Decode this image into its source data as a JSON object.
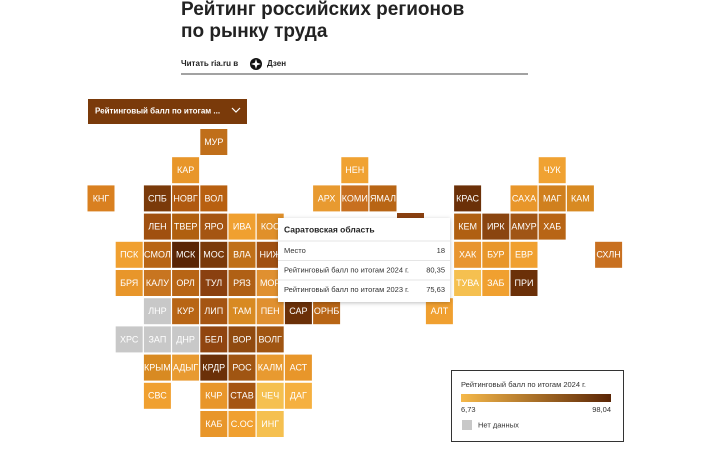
{
  "header": {
    "title": "Рейтинг российских регионов по рынку труда",
    "read_prefix": "Читать ria.ru в",
    "read_source": "Дзен"
  },
  "dropdown": {
    "label": "Рейтинговый балл по итогам ..."
  },
  "tiles": [
    {
      "label": "МУР",
      "color": "#c06f1a"
    },
    {
      "label": "КАР",
      "color": "#e8962a"
    },
    {
      "label": "НЕН",
      "color": "#f0a232"
    },
    {
      "label": "ЧУК",
      "color": "#f0a232"
    },
    {
      "label": "КНГ",
      "color": "#d98020"
    },
    {
      "label": "СПБ",
      "color": "#7a3a0a"
    },
    {
      "label": "НОВГ",
      "color": "#b05a10"
    },
    {
      "label": "ВОЛ",
      "color": "#b86010"
    },
    {
      "label": "АРХ",
      "color": "#e89a30"
    },
    {
      "label": "КОМИ",
      "color": "#c87020"
    },
    {
      "label": "ЯМАЛ",
      "color": "#b86515"
    },
    {
      "label": "КРАС",
      "color": "#6b3008"
    },
    {
      "label": "САХА",
      "color": "#e8962a"
    },
    {
      "label": "МАГ",
      "color": "#d0801e"
    },
    {
      "label": "КАМ",
      "color": "#d88a22"
    },
    {
      "label": "ЛЕН",
      "color": "#a05010"
    },
    {
      "label": "ТВЕР",
      "color": "#b06010"
    },
    {
      "label": "ЯРО",
      "color": "#a55512"
    },
    {
      "label": "ИВА",
      "color": "#f0a030"
    },
    {
      "label": "КОС",
      "color": "#e0902a"
    },
    {
      "label": "КЕМ",
      "color": "#b06012"
    },
    {
      "label": "ИРК",
      "color": "#8a4510"
    },
    {
      "label": "АМУР",
      "color": "#a05515"
    },
    {
      "label": "ХАБ",
      "color": "#b86515"
    },
    {
      "label": "ПСК",
      "color": "#f0a030"
    },
    {
      "label": "СМОЛ",
      "color": "#b86515"
    },
    {
      "label": "МСК",
      "color": "#5a2505"
    },
    {
      "label": "МОС",
      "color": "#7a3a0a"
    },
    {
      "label": "ВЛА",
      "color": "#c07018"
    },
    {
      "label": "НИЖ",
      "color": "#a05012"
    },
    {
      "label": "ХАК",
      "color": "#e89530"
    },
    {
      "label": "БУР",
      "color": "#e8962a"
    },
    {
      "label": "ЕВР",
      "color": "#f0a030"
    },
    {
      "label": "СХЛН",
      "color": "#c87020"
    },
    {
      "label": "БРЯ",
      "color": "#e8962a"
    },
    {
      "label": "КАЛУ",
      "color": "#c87520"
    },
    {
      "label": "ОРЛ",
      "color": "#b86515"
    },
    {
      "label": "ТУЛ",
      "color": "#8a4010"
    },
    {
      "label": "РЯЗ",
      "color": "#b06015"
    },
    {
      "label": "МОР",
      "color": "#e09030"
    },
    {
      "label": "ТУВА",
      "color": "#f5c050"
    },
    {
      "label": "ЗАБ",
      "color": "#f0a030"
    },
    {
      "label": "ПРИ",
      "color": "#6b3008"
    },
    {
      "label": "ЛНР",
      "color": "#c8c8c8"
    },
    {
      "label": "КУР",
      "color": "#b86515"
    },
    {
      "label": "ЛИП",
      "color": "#a55512"
    },
    {
      "label": "ТАМ",
      "color": "#d88a22"
    },
    {
      "label": "ПЕН",
      "color": "#e09030"
    },
    {
      "label": "САР",
      "color": "#6b3008"
    },
    {
      "label": "ОРНБ",
      "color": "#b86515"
    },
    {
      "label": "АЛТ",
      "color": "#f0a030"
    },
    {
      "label": "ХРС",
      "color": "#c8c8c8"
    },
    {
      "label": "ЗАП",
      "color": "#c8c8c8"
    },
    {
      "label": "ДНР",
      "color": "#c8c8c8"
    },
    {
      "label": "БЕЛ",
      "color": "#904510"
    },
    {
      "label": "ВОР",
      "color": "#904a10"
    },
    {
      "label": "ВОЛГ",
      "color": "#a05512"
    },
    {
      "label": "КРЫМ",
      "color": "#d88a22"
    },
    {
      "label": "АДЫГ",
      "color": "#e89a30"
    },
    {
      "label": "КРДР",
      "color": "#6b3008"
    },
    {
      "label": "РОС",
      "color": "#a05512"
    },
    {
      "label": "КАЛМ",
      "color": "#e89a30"
    },
    {
      "label": "АСТ",
      "color": "#e8962a"
    },
    {
      "label": "СВС",
      "color": "#f0a030"
    },
    {
      "label": "КЧР",
      "color": "#e8962a"
    },
    {
      "label": "СТАВ",
      "color": "#a55512"
    },
    {
      "label": "ЧЕЧ",
      "color": "#f5c050"
    },
    {
      "label": "ДАГ",
      "color": "#f5b040"
    },
    {
      "label": "КАБ",
      "color": "#e8962a"
    },
    {
      "label": "С.ОС",
      "color": "#f0a030"
    },
    {
      "label": "ИНГ",
      "color": "#f5c050"
    }
  ],
  "tooltip": {
    "title": "Саратовская область",
    "rows": [
      {
        "label": "Место",
        "value": "18"
      },
      {
        "label": "Рейтинговый балл по итогам 2024 г.",
        "value": "80,35"
      },
      {
        "label": "Рейтинговый балл по итогам 2023 г.",
        "value": "75,63"
      }
    ]
  },
  "legend": {
    "title": "Рейтинговый балл по итогам 2024 г.",
    "min": "6,73",
    "max": "98,04",
    "no_data": "Нет данных",
    "low_color": "#f5b84a",
    "high_color": "#5a2505",
    "no_data_color": "#c8c8c8"
  }
}
